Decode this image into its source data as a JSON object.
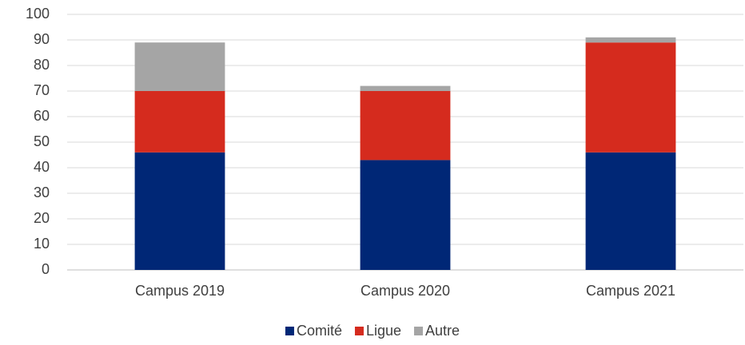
{
  "chart_data": {
    "type": "stacked_bar",
    "categories": [
      "Campus 2019",
      "Campus 2020",
      "Campus 2021"
    ],
    "series": [
      {
        "name": "Comité",
        "color": "#002776",
        "values": [
          46,
          43,
          46
        ]
      },
      {
        "name": "Ligue",
        "color": "#d52b1e",
        "values": [
          24,
          27,
          43
        ]
      },
      {
        "name": "Autre",
        "color": "#a5a5a5",
        "values": [
          19,
          2,
          2
        ]
      }
    ],
    "ylim": [
      0,
      100
    ],
    "yticks": [
      0,
      10,
      20,
      30,
      40,
      50,
      60,
      70,
      80,
      90,
      100
    ],
    "grid": true,
    "legend": "bottom"
  }
}
